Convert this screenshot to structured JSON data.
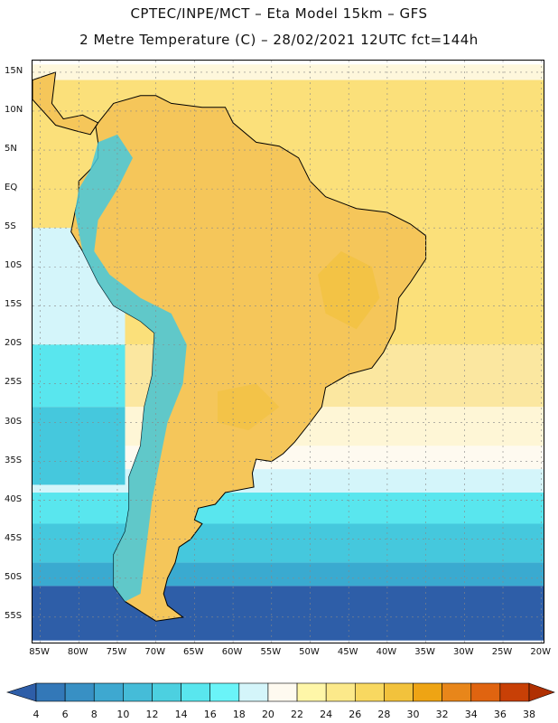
{
  "header": {
    "line1": "CPTEC/INPE/MCT –  Eta Model 15km – GFS",
    "line2": "2 Metre Temperature (C) – 28/02/2021 12UTC fct=144h"
  },
  "map": {
    "lat_labels": [
      "15N",
      "10N",
      "5N",
      "EQ",
      "5S",
      "10S",
      "15S",
      "20S",
      "25S",
      "30S",
      "35S",
      "40S",
      "45S",
      "50S",
      "55S"
    ],
    "lon_labels": [
      "85W",
      "80W",
      "75W",
      "70W",
      "65W",
      "60W",
      "55W",
      "50W",
      "45W",
      "40W",
      "35W",
      "30W",
      "25W",
      "20W"
    ],
    "ocean_bands": [
      {
        "from_lat": 16,
        "to_lat": 14,
        "color": "#fef7dc"
      },
      {
        "from_lat": 14,
        "to_lat": -20,
        "color": "#fbe07a"
      },
      {
        "from_lat": -20,
        "to_lat": -28,
        "color": "#fbe7a0"
      },
      {
        "from_lat": -28,
        "to_lat": -33,
        "color": "#fef6d6"
      },
      {
        "from_lat": -33,
        "to_lat": -36,
        "color": "#fefaf0"
      },
      {
        "from_lat": -36,
        "to_lat": -39,
        "color": "#d4f5fa"
      },
      {
        "from_lat": -39,
        "to_lat": -43,
        "color": "#59e6ee"
      },
      {
        "from_lat": -43,
        "to_lat": -48,
        "color": "#45c8dd"
      },
      {
        "from_lat": -48,
        "to_lat": -51,
        "color": "#3aaad0"
      },
      {
        "from_lat": -51,
        "to_lat": -58,
        "color": "#2e5ea8"
      }
    ],
    "pacific_bands": [
      {
        "from_lat": -5,
        "to_lat": -20,
        "color": "#d4f5fa"
      },
      {
        "from_lat": -20,
        "to_lat": -28,
        "color": "#59e6ee"
      },
      {
        "from_lat": -28,
        "to_lat": -38,
        "color": "#45c8dd"
      }
    ],
    "land_color": "#f5c65a",
    "andes_color": "#45c8dd"
  },
  "colorbar": {
    "values": [
      "4",
      "6",
      "8",
      "10",
      "12",
      "14",
      "16",
      "18",
      "20",
      "22",
      "24",
      "26",
      "28",
      "30",
      "32",
      "34",
      "36",
      "38"
    ],
    "colors": [
      "#2e5ea8",
      "#3378b8",
      "#3890c4",
      "#3ea8d0",
      "#45bcd8",
      "#4cd0e0",
      "#59e6ee",
      "#6af4f8",
      "#d4f5fa",
      "#fefaf0",
      "#fef6a8",
      "#fce98a",
      "#f8d860",
      "#f2c23c",
      "#eea414",
      "#e8861a",
      "#e06410",
      "#c84006",
      "#b03002"
    ]
  }
}
